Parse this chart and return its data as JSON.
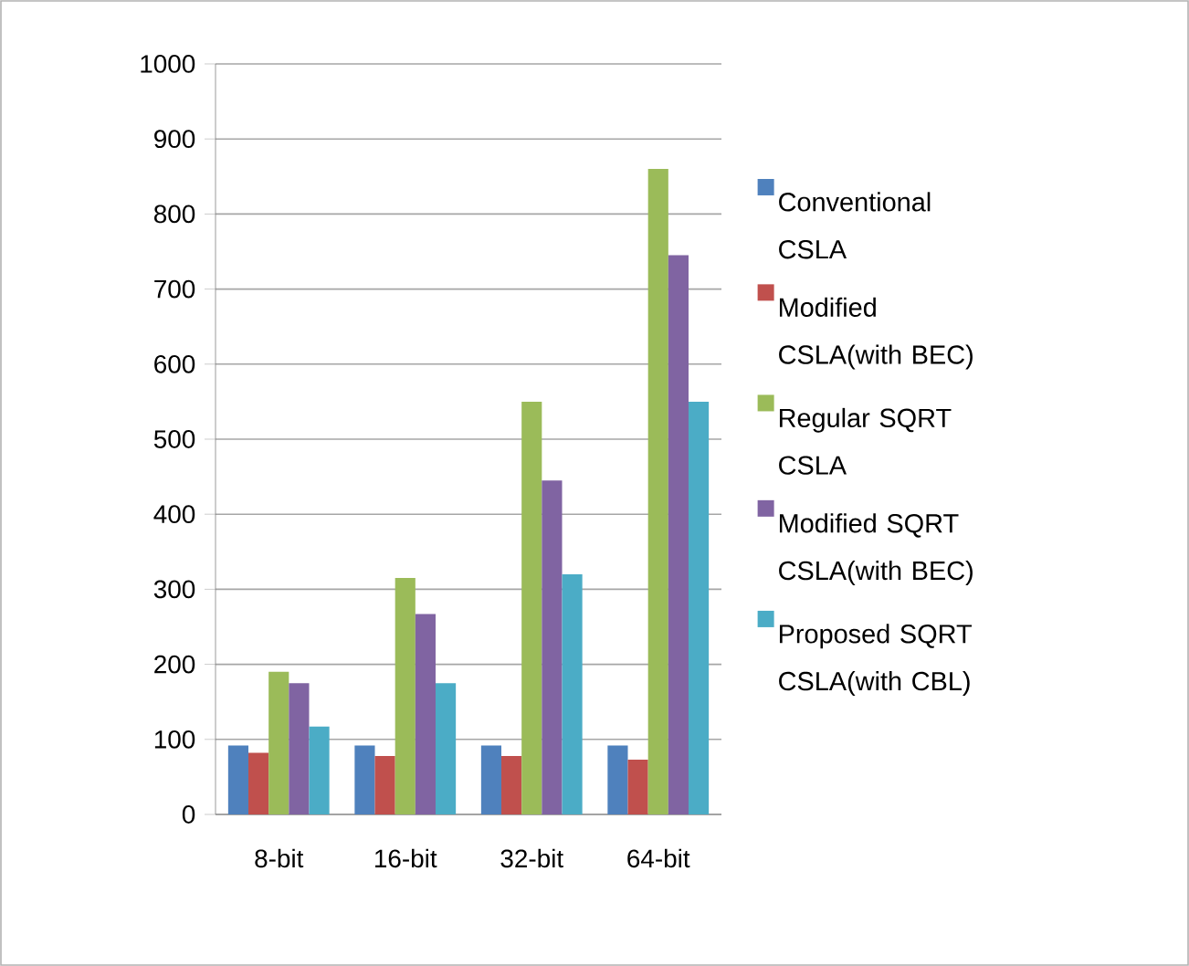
{
  "chart_data": {
    "type": "bar",
    "categories": [
      "8-bit",
      "16-bit",
      "32-bit",
      "64-bit"
    ],
    "series": [
      {
        "name": "Conventional CSLA",
        "color": "#4f81bd",
        "values": [
          92,
          92,
          92,
          92
        ]
      },
      {
        "name": "Modified CSLA(with BEC)",
        "color": "#c0504d",
        "values": [
          82,
          78,
          78,
          73
        ]
      },
      {
        "name": "Regular SQRT CSLA",
        "color": "#9bbb59",
        "values": [
          190,
          315,
          550,
          860
        ]
      },
      {
        "name": "Modified SQRT CSLA(with BEC)",
        "color": "#8064a2",
        "values": [
          175,
          267,
          445,
          745
        ]
      },
      {
        "name": "Proposed SQRT CSLA(with CBL)",
        "color": "#4bacc6",
        "values": [
          117,
          175,
          320,
          550
        ]
      }
    ],
    "ylim": [
      0,
      1000
    ],
    "yticks": [
      0,
      100,
      200,
      300,
      400,
      500,
      600,
      700,
      800,
      900,
      1000
    ],
    "grid": "y",
    "legend": "right"
  }
}
